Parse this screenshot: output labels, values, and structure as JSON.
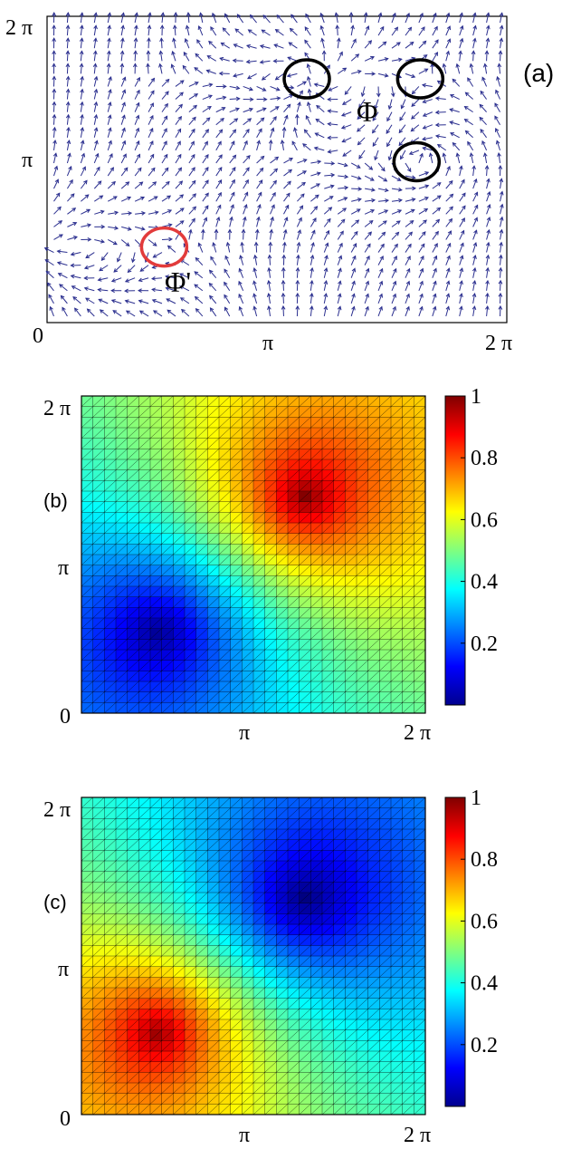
{
  "chart_data": [
    {
      "type": "quiver",
      "panel_label": "(a)",
      "x_ticks": [
        "0",
        "π",
        "2 π"
      ],
      "y_ticks": [
        "π",
        "2 π"
      ],
      "xlim": [
        0,
        6.2832
      ],
      "ylim": [
        0,
        6.2832
      ],
      "arrow_color": "#2b2f8f",
      "grid": false,
      "vortices": [
        {
          "x": 3.55,
          "y": 5.0,
          "color": "#000000"
        },
        {
          "x": 5.1,
          "y": 5.0,
          "color": "#000000"
        },
        {
          "x": 5.05,
          "y": 3.3,
          "color": "#000000"
        },
        {
          "x": 1.6,
          "y": 1.55,
          "color": "#e23b3b"
        }
      ],
      "annotations": [
        "Φ",
        "Φ'"
      ]
    },
    {
      "type": "heatmap",
      "panel_label": "(b)",
      "x_ticks": [
        "π",
        "2 π"
      ],
      "y_ticks": [
        "0",
        "π",
        "2 π"
      ],
      "xlim": [
        0,
        6.2832
      ],
      "ylim": [
        0,
        6.2832
      ],
      "grid_cells": 30,
      "colorbar": {
        "min": 0,
        "max": 1,
        "ticks": [
          "0.2",
          "0.4",
          "0.6",
          "0.8",
          "1"
        ]
      },
      "peaks": [
        {
          "x": 4.1,
          "y": 4.3,
          "value": 1.0
        },
        {
          "x": 1.4,
          "y": 1.6,
          "value": 0.02
        }
      ]
    },
    {
      "type": "heatmap",
      "panel_label": "(c)",
      "x_ticks": [
        "π",
        "2 π"
      ],
      "y_ticks": [
        "0",
        "π",
        "2 π"
      ],
      "xlim": [
        0,
        6.2832
      ],
      "ylim": [
        0,
        6.2832
      ],
      "grid_cells": 30,
      "colorbar": {
        "min": 0,
        "max": 1,
        "ticks": [
          "0.2",
          "0.4",
          "0.6",
          "0.8",
          "1"
        ]
      },
      "peaks": [
        {
          "x": 4.1,
          "y": 4.3,
          "value": 0.0
        },
        {
          "x": 1.4,
          "y": 1.6,
          "value": 0.98
        }
      ]
    }
  ]
}
